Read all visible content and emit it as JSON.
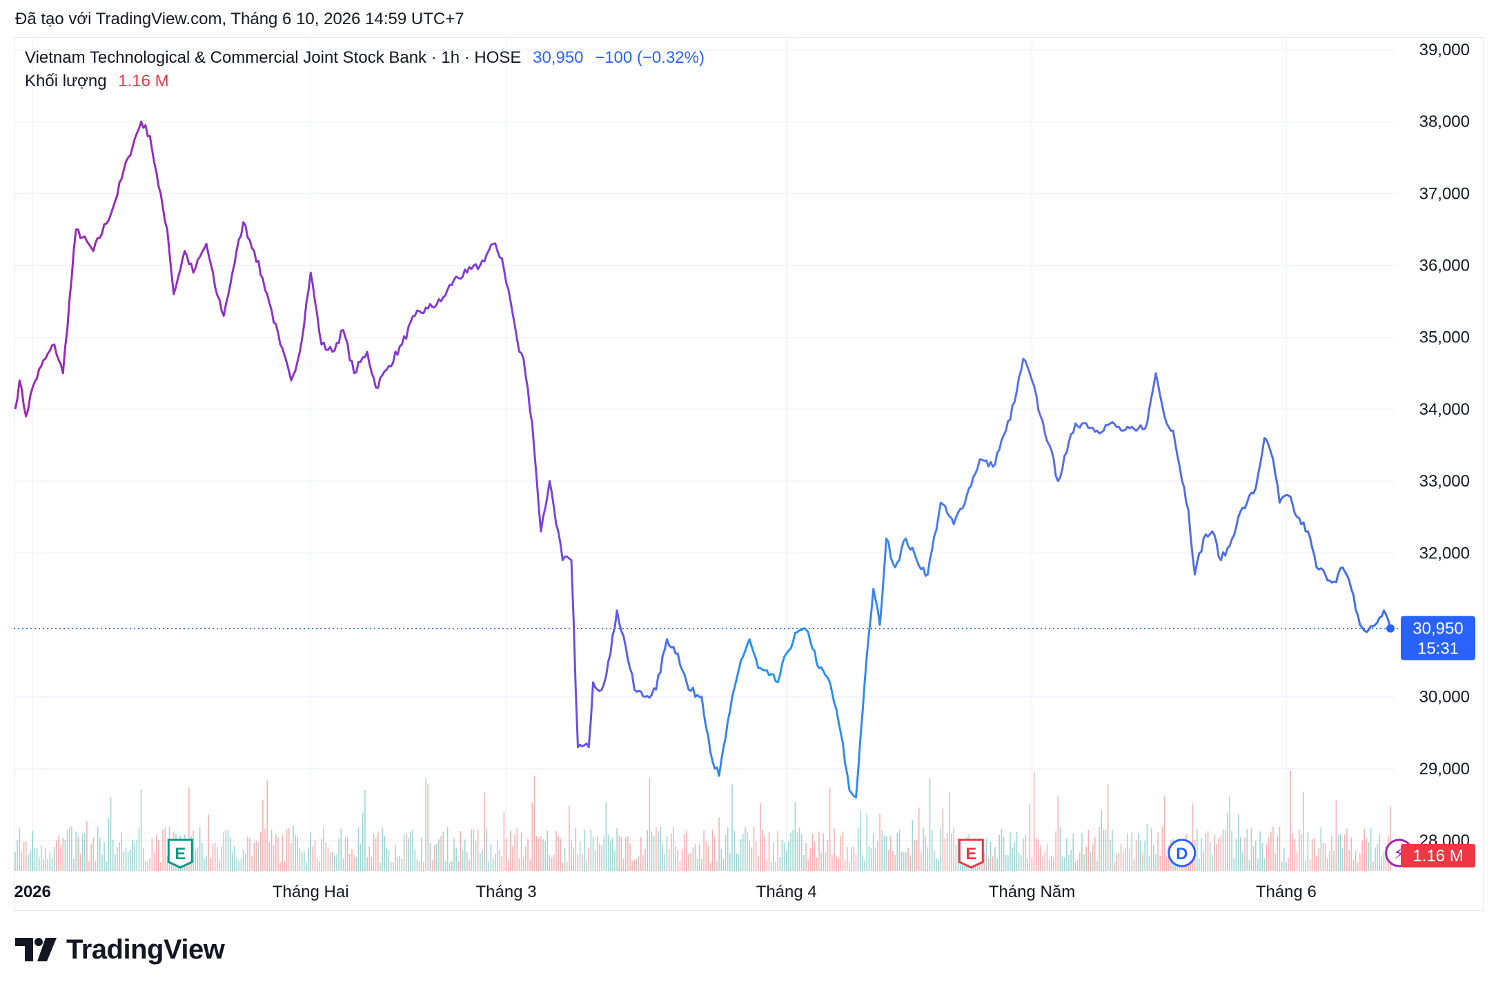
{
  "header": {
    "created_text": "Đã tạo với TradingView.com, Tháng 6 10, 2026 14:59 UTC+7"
  },
  "legend": {
    "symbol": "Vietnam Technological & Commercial Joint Stock Bank · 1h · HOSE",
    "last_price": "30,950",
    "change": "−100 (−0.32%)",
    "volume_label": "Khối lượng",
    "volume_value": "1.16 M"
  },
  "price_tag": {
    "price": "30,950",
    "countdown": "15:31"
  },
  "volume_tag": "1.16 M",
  "markers": [
    {
      "icon": "earnings-icon",
      "letter": "E",
      "color": "#089981",
      "x_index": 76
    },
    {
      "icon": "earnings-icon",
      "letter": "E",
      "color": "#f23645",
      "x_index": 440
    },
    {
      "icon": "dividend-icon",
      "letter": "D",
      "color": "#2962ff",
      "x_index": 537
    },
    {
      "icon": "flash-icon",
      "letter": "⚡",
      "color": "#9c27b0",
      "x_index": 637
    }
  ],
  "brand": {
    "name": "TradingView"
  },
  "colors": {
    "up": "#26a69a",
    "down": "#ef5350",
    "line_start": "#9c27b0",
    "line_mid": "#2196f3",
    "price_tag": "#2962ff",
    "volume_tag": "#f23645"
  },
  "chart_data": {
    "type": "line",
    "title": "",
    "xlabel": "",
    "ylabel": "",
    "ylim": [
      27600,
      39300
    ],
    "y_ticks": [
      28000,
      29000,
      30000,
      31000,
      32000,
      33000,
      34000,
      35000,
      36000,
      37000,
      38000,
      39000
    ],
    "y_tick_labels": [
      "28,000",
      "29,000",
      "30,000",
      "31,000",
      "32,000",
      "33,000",
      "34,000",
      "35,000",
      "36,000",
      "37,000",
      "38,000",
      "39,000"
    ],
    "x_tick_labels": [
      {
        "label": "2026",
        "index": 8,
        "bold": true
      },
      {
        "label": "Tháng Hai",
        "index": 136
      },
      {
        "label": "Tháng 3",
        "index": 226
      },
      {
        "label": "Tháng 4",
        "index": 355
      },
      {
        "label": "Tháng Năm",
        "index": 468
      },
      {
        "label": "Tháng 6",
        "index": 585
      }
    ],
    "last_value": 30950,
    "grid": true,
    "anchors": [
      [
        0,
        34000
      ],
      [
        2,
        34400
      ],
      [
        5,
        33900
      ],
      [
        8,
        34300
      ],
      [
        12,
        34600
      ],
      [
        18,
        34900
      ],
      [
        22,
        34500
      ],
      [
        28,
        36500
      ],
      [
        36,
        36200
      ],
      [
        45,
        36800
      ],
      [
        52,
        37500
      ],
      [
        58,
        38000
      ],
      [
        62,
        37800
      ],
      [
        66,
        37100
      ],
      [
        70,
        36500
      ],
      [
        73,
        35600
      ],
      [
        78,
        36200
      ],
      [
        82,
        35900
      ],
      [
        88,
        36300
      ],
      [
        92,
        35700
      ],
      [
        96,
        35300
      ],
      [
        100,
        35900
      ],
      [
        105,
        36600
      ],
      [
        110,
        36200
      ],
      [
        116,
        35600
      ],
      [
        122,
        34900
      ],
      [
        127,
        34400
      ],
      [
        131,
        34800
      ],
      [
        136,
        35900
      ],
      [
        141,
        34900
      ],
      [
        146,
        34800
      ],
      [
        151,
        35100
      ],
      [
        156,
        34500
      ],
      [
        162,
        34800
      ],
      [
        166,
        34300
      ],
      [
        172,
        34600
      ],
      [
        178,
        34900
      ],
      [
        184,
        35300
      ],
      [
        190,
        35400
      ],
      [
        196,
        35500
      ],
      [
        202,
        35800
      ],
      [
        208,
        35900
      ],
      [
        214,
        36000
      ],
      [
        220,
        36300
      ],
      [
        224,
        36100
      ],
      [
        228,
        35500
      ],
      [
        232,
        34800
      ],
      [
        234,
        34700
      ],
      [
        238,
        33800
      ],
      [
        242,
        32300
      ],
      [
        246,
        33000
      ],
      [
        252,
        31900
      ],
      [
        256,
        31900
      ],
      [
        259,
        29300
      ],
      [
        264,
        29300
      ],
      [
        266,
        30200
      ],
      [
        270,
        30100
      ],
      [
        274,
        30600
      ],
      [
        277,
        31200
      ],
      [
        281,
        30700
      ],
      [
        285,
        30100
      ],
      [
        290,
        30000
      ],
      [
        295,
        30100
      ],
      [
        300,
        30800
      ],
      [
        305,
        30600
      ],
      [
        310,
        30100
      ],
      [
        316,
        30000
      ],
      [
        321,
        29100
      ],
      [
        324,
        28900
      ],
      [
        329,
        29800
      ],
      [
        334,
        30500
      ],
      [
        338,
        30800
      ],
      [
        342,
        30400
      ],
      [
        347,
        30300
      ],
      [
        351,
        30200
      ],
      [
        355,
        30600
      ],
      [
        360,
        30900
      ],
      [
        365,
        30900
      ],
      [
        370,
        30400
      ],
      [
        375,
        30200
      ],
      [
        380,
        29500
      ],
      [
        384,
        28700
      ],
      [
        387,
        28600
      ],
      [
        391,
        30200
      ],
      [
        395,
        31500
      ],
      [
        398,
        31000
      ],
      [
        401,
        32200
      ],
      [
        405,
        31800
      ],
      [
        410,
        32200
      ],
      [
        415,
        31900
      ],
      [
        420,
        31700
      ],
      [
        426,
        32700
      ],
      [
        432,
        32400
      ],
      [
        438,
        32800
      ],
      [
        444,
        33300
      ],
      [
        450,
        33200
      ],
      [
        456,
        33700
      ],
      [
        460,
        34100
      ],
      [
        464,
        34700
      ],
      [
        468,
        34400
      ],
      [
        472,
        33900
      ],
      [
        476,
        33500
      ],
      [
        480,
        33000
      ],
      [
        484,
        33400
      ],
      [
        488,
        33800
      ],
      [
        493,
        33800
      ],
      [
        498,
        33700
      ],
      [
        504,
        33800
      ],
      [
        510,
        33700
      ],
      [
        516,
        33700
      ],
      [
        521,
        33800
      ],
      [
        525,
        34500
      ],
      [
        529,
        33900
      ],
      [
        533,
        33700
      ],
      [
        536,
        33200
      ],
      [
        540,
        32600
      ],
      [
        543,
        31700
      ],
      [
        547,
        32200
      ],
      [
        551,
        32300
      ],
      [
        555,
        31900
      ],
      [
        559,
        32100
      ],
      [
        563,
        32500
      ],
      [
        567,
        32700
      ],
      [
        571,
        32900
      ],
      [
        575,
        33600
      ],
      [
        579,
        33300
      ],
      [
        582,
        32700
      ],
      [
        586,
        32800
      ],
      [
        590,
        32500
      ],
      [
        595,
        32300
      ],
      [
        599,
        31800
      ],
      [
        603,
        31700
      ],
      [
        607,
        31600
      ],
      [
        611,
        31800
      ],
      [
        615,
        31500
      ],
      [
        619,
        31000
      ],
      [
        622,
        30900
      ],
      [
        626,
        31000
      ],
      [
        630,
        31200
      ],
      [
        633,
        30950
      ]
    ],
    "volume": {
      "ylim": [
        0,
        2500000
      ],
      "last_value": 1160000
    }
  }
}
